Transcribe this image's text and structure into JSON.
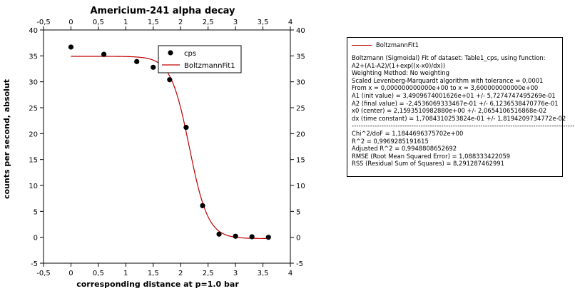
{
  "chart_data": {
    "type": "scatter",
    "title": "Americium-241 alpha decay",
    "xlabel": "corresponding distance at p=1.0 bar",
    "ylabel": "counts per second, absolut",
    "xlim": [
      -0.5,
      4
    ],
    "ylim": [
      -5,
      40
    ],
    "x_ticks": [
      -0.5,
      0,
      0.5,
      1,
      1.5,
      2,
      2.5,
      3,
      3.5,
      4
    ],
    "x_tick_labels": [
      "-0,5",
      "0",
      "0,5",
      "1",
      "1,5",
      "2",
      "2,5",
      "3",
      "3,5",
      "4"
    ],
    "y_ticks": [
      -5,
      0,
      5,
      10,
      15,
      20,
      25,
      30,
      35,
      40
    ],
    "y_tick_labels": [
      "-5",
      "0",
      "5",
      "10",
      "15",
      "20",
      "25",
      "30",
      "35",
      "40"
    ],
    "mirror_axes": true,
    "grid": false,
    "legend_position": "top-right",
    "series": [
      {
        "name": "cps",
        "kind": "scatter",
        "color": "#000000",
        "x": [
          0,
          0.6,
          1.2,
          1.5,
          1.8,
          2.1,
          2.4,
          2.7,
          3.0,
          3.3,
          3.6
        ],
        "y": [
          36.7,
          35.3,
          33.9,
          32.8,
          30.4,
          21.2,
          6.1,
          0.6,
          0.2,
          0.1,
          0.0
        ]
      },
      {
        "name": "BoltzmannFit1",
        "kind": "line",
        "color": "#c00000",
        "model": "boltzmann",
        "params": {
          "A1": 34.909674001626,
          "A2": -0.24536069333467,
          "x0": 2.159351098288,
          "dx": 0.17084310253824
        },
        "x_range": [
          0,
          3.6
        ]
      }
    ]
  },
  "report": {
    "legend_label": "BoltzmannFit1",
    "legend_color": "#c00000",
    "lines": [
      "Boltzmann (Sigmoidal) Fit of dataset: Table1_cps, using function:",
      "A2+(A1-A2)/(1+exp((x-x0)/dx))",
      "Weighting Method: No weighting",
      "Scaled Levenberg-Marquardt algorithm with tolerance = 0,0001",
      "From x = 0,000000000000e+00 to x = 3,600000000000e+00",
      "A1 (init value) = 3,4909674001626e+01 +/- 5,7274747495269e-01",
      "A2 (final value) = -2,4536069333467e-01 +/- 6,1236538470776e-01",
      "x0 (center) = 2,1593510982880e+00 +/- 2,0654106516868e-02",
      "dx (time constant) = 1,7084310253824e-01 +/- 1,8194209734772e-02"
    ],
    "separator": "-------------------------------------------------------------------------------------------------",
    "stats": [
      "Chi^2/doF = 1,1844696375702e+00",
      "R^2 = 0,9969285191615",
      "Adjusted R^2 = 0,9948808652692",
      "RMSE (Root Mean Squared Error) = 1,088333422059",
      "RSS (Residual Sum of Squares) = 8,291287462991"
    ]
  }
}
